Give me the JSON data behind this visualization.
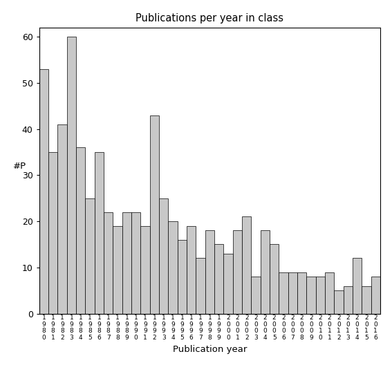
{
  "title": "Publications per year in class",
  "xlabel": "Publication year",
  "ylabel": "#P",
  "bar_color": "#c8c8c8",
  "bar_edgecolor": "#000000",
  "background_color": "#ffffff",
  "ylim": [
    0,
    62
  ],
  "yticks": [
    0,
    10,
    20,
    30,
    40,
    50,
    60
  ],
  "years": [
    1980,
    1981,
    1982,
    1983,
    1984,
    1985,
    1986,
    1987,
    1988,
    1989,
    1990,
    1991,
    1992,
    1993,
    1994,
    1995,
    1996,
    1997,
    1998,
    1999,
    2000,
    2001,
    2002,
    2003,
    2004,
    2005,
    2006,
    2007,
    2008,
    2009,
    2010,
    2011,
    2012,
    2013,
    2014,
    2015,
    2016
  ],
  "values": [
    53,
    35,
    41,
    60,
    36,
    25,
    35,
    22,
    19,
    22,
    22,
    19,
    43,
    25,
    20,
    16,
    19,
    12,
    18,
    15,
    13,
    18,
    21,
    8,
    18,
    15,
    9,
    9,
    9,
    8,
    8,
    9,
    5,
    6,
    12,
    6,
    8
  ]
}
